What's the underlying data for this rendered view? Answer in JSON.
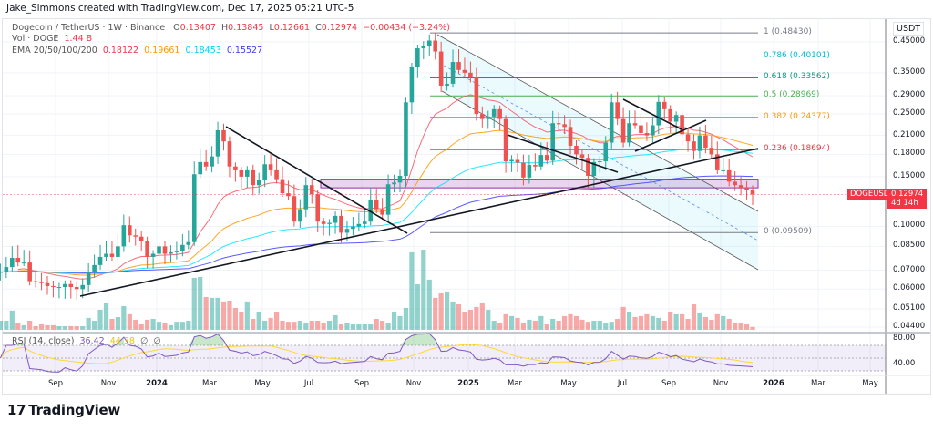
{
  "credit": "Jake_Simmons created with TradingView.com, Dec 17, 2025 05:21 UTC-5",
  "legend": {
    "symbol": "Dogecoin / TetherUS · 1W · Binance",
    "o_label": "O",
    "o": "0.13407",
    "h_label": "H",
    "h": "0.13845",
    "l_label": "L",
    "l": "0.12661",
    "c_label": "C",
    "c": "0.12974",
    "change": "−0.00434 (−3.24%)",
    "vol_label": "Vol · DOGE",
    "vol_value": "1.44 B",
    "ema_label": "EMA 20/50/100/200",
    "ema20": "0.18122",
    "ema50": "0.19661",
    "ema100": "0.18453",
    "ema200": "0.15527"
  },
  "rsi_legend": {
    "label": "RSI (14, close)",
    "rsi": "36.42",
    "ma": "44.38",
    "na1": "∅",
    "na2": "∅"
  },
  "price_axis": {
    "currency": "USDT",
    "ticks": [
      "0.45000",
      "0.35000",
      "0.29000",
      "0.25000",
      "0.21000",
      "0.18000",
      "0.15000",
      "0.10000",
      "0.08500",
      "0.07000",
      "0.06000",
      "0.05100",
      "0.04400"
    ]
  },
  "rsi_axis": {
    "ticks": [
      "80.00",
      "40.00"
    ]
  },
  "time_axis": {
    "ticks": [
      "Sep",
      "Nov",
      "2024",
      "Mar",
      "May",
      "Jul",
      "Sep",
      "Nov",
      "2025",
      "Mar",
      "May",
      "Jul",
      "Sep",
      "Nov",
      "2026",
      "Mar",
      "May"
    ]
  },
  "last_price": {
    "symbol": "DOGEUSDT",
    "price": "0.12974",
    "countdown": "4d 14h"
  },
  "fib_levels": [
    {
      "label": "1 (0.48430)",
      "price": 0.4843,
      "color": "#787b86"
    },
    {
      "label": "0.786 (0.40101)",
      "price": 0.40101,
      "color": "#00bcd4"
    },
    {
      "label": "0.618 (0.33562)",
      "price": 0.33562,
      "color": "#089981"
    },
    {
      "label": "0.5 (0.28969)",
      "price": 0.28969,
      "color": "#4caf50"
    },
    {
      "label": "0.382 (0.24377)",
      "price": 0.24377,
      "color": "#ff9800"
    },
    {
      "label": "0.236 (0.18694)",
      "price": 0.18694,
      "color": "#f23645"
    },
    {
      "label": "0 (0.09509)",
      "price": 0.09509,
      "color": "#787b86"
    }
  ],
  "colors": {
    "up": "#26a69a",
    "down": "#ef5350",
    "ema20": "#f7525f",
    "ema50": "#ff9800",
    "ema100": "#00e5ff",
    "ema200": "#3d3dff",
    "rsi": "#7e57c2",
    "rsi_ma": "#fdd835",
    "zone": "#9c27b0"
  },
  "brand": "TradingView",
  "chart_data": {
    "type": "candlestick",
    "title": "Dogecoin / TetherUS · 1W · Binance",
    "interval": "1W",
    "scale": "log",
    "ylim": [
      0.044,
      0.5
    ],
    "grid": true,
    "first_open": 0.0685,
    "last_open": 0.13407,
    "close": [
      0.069,
      0.0718,
      0.0774,
      0.0745,
      0.0745,
      0.064,
      0.0635,
      0.063,
      0.0615,
      0.061,
      0.061,
      0.0625,
      0.061,
      0.06,
      0.062,
      0.069,
      0.073,
      0.078,
      0.08,
      0.078,
      0.085,
      0.101,
      0.093,
      0.092,
      0.089,
      0.078,
      0.08,
      0.085,
      0.08,
      0.081,
      0.082,
      0.086,
      0.088,
      0.153,
      0.169,
      0.163,
      0.177,
      0.219,
      0.2,
      0.163,
      0.158,
      0.15,
      0.158,
      0.14,
      0.146,
      0.166,
      0.158,
      0.147,
      0.131,
      0.128,
      0.104,
      0.115,
      0.14,
      0.13,
      0.104,
      0.102,
      0.103,
      0.109,
      0.095,
      0.098,
      0.1,
      0.102,
      0.104,
      0.124,
      0.115,
      0.11,
      0.141,
      0.143,
      0.151,
      0.275,
      0.368,
      0.427,
      0.436,
      0.455,
      0.416,
      0.315,
      0.32,
      0.382,
      0.358,
      0.35,
      0.337,
      0.25,
      0.24,
      0.245,
      0.26,
      0.24,
      0.17,
      0.172,
      0.168,
      0.149,
      0.165,
      0.163,
      0.179,
      0.171,
      0.232,
      0.23,
      0.225,
      0.193,
      0.18,
      0.175,
      0.151,
      0.169,
      0.17,
      0.198,
      0.275,
      0.24,
      0.198,
      0.232,
      0.228,
      0.214,
      0.21,
      0.228,
      0.276,
      0.26,
      0.235,
      0.248,
      0.212,
      0.2,
      0.185,
      0.21,
      0.19,
      0.18,
      0.158,
      0.158,
      0.144,
      0.14,
      0.137,
      0.13407,
      0.12974
    ],
    "volume_B": [
      4.5,
      4.5,
      9.5,
      3.6,
      2.3,
      4.5,
      1.8,
      2.7,
      2.3,
      2.3,
      1.8,
      1.8,
      1.8,
      1.8,
      1.8,
      5.9,
      4.5,
      9.9,
      13.5,
      5.4,
      6.3,
      11.7,
      7.7,
      5.0,
      2.7,
      5.0,
      5.4,
      4.0,
      3.2,
      2.3,
      4.0,
      4.0,
      4.5,
      25.7,
      26.1,
      16.2,
      15.8,
      15.8,
      14.0,
      14.4,
      10.8,
      9.0,
      14.0,
      5.4,
      9.0,
      4.5,
      5.9,
      9.0,
      4.5,
      4.0,
      4.0,
      4.5,
      3.2,
      4.5,
      4.5,
      3.6,
      4.5,
      7.2,
      2.7,
      3.2,
      2.7,
      2.7,
      2.7,
      2.7,
      5.4,
      4.5,
      3.6,
      9.0,
      6.8,
      10.8,
      38.3,
      22.5,
      39.6,
      24.8,
      15.8,
      18.0,
      18.9,
      14.0,
      12.6,
      9.0,
      9.9,
      11.3,
      13.5,
      9.9,
      4.5,
      3.6,
      7.7,
      6.8,
      5.9,
      3.6,
      5.0,
      4.5,
      6.8,
      2.7,
      5.4,
      4.5,
      6.8,
      7.7,
      6.8,
      5.0,
      4.0,
      4.5,
      4.5,
      3.6,
      4.0,
      5.4,
      11.3,
      9.0,
      6.3,
      6.8,
      7.7,
      6.8,
      5.9,
      4.5,
      9.0,
      7.7,
      7.7,
      5.4,
      12.6,
      8.6,
      6.3,
      5.0,
      7.7,
      6.8,
      5.4,
      3.6,
      3.6,
      2.7,
      1.44
    ],
    "support_resistance_zone": [
      0.137,
      0.147
    ],
    "indicators": [
      "EMA 20",
      "EMA 50",
      "EMA 100",
      "EMA 200",
      "Volume",
      "RSI (14, close)"
    ]
  }
}
